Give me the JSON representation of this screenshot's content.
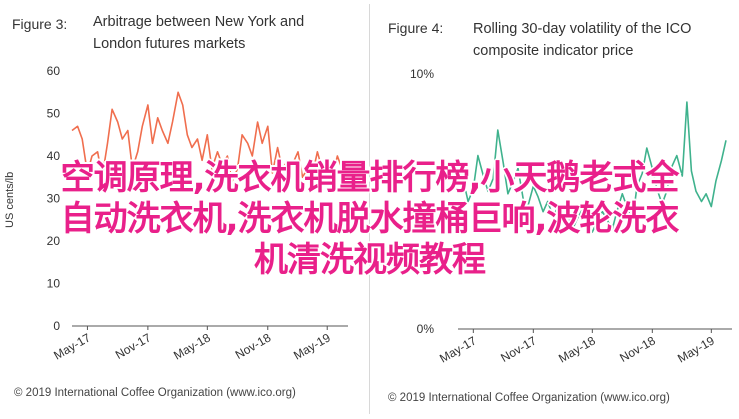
{
  "left_panel": {
    "fig_num": "Figure 3:",
    "title_line1": "Arbitrage between New York and",
    "title_line2": "London futures markets",
    "credit": "© 2019 International Coffee Organization (www.ico.org)"
  },
  "right_panel": {
    "fig_num": "Figure 4:",
    "title_line1": "Rolling 30-day volatility of the ICO",
    "title_line2": "composite indicator price",
    "credit": "© 2019 International Coffee Organization (www.ico.org)"
  },
  "overlay_text": {
    "line1": "空调原理,洗衣机销量排行榜,小天鹅老式全",
    "line2": "自动洗衣机,洗衣机脱水撞桶巨响,波轮洗衣",
    "line3": "机清洗视频教程"
  },
  "colors": {
    "series_left": "#f06e4e",
    "series_right": "#3fb28d",
    "overlay": "#e9208a"
  },
  "chart_data": [
    {
      "type": "line",
      "ylabel": "US cents/lb",
      "ylim": [
        0,
        60
      ],
      "yticks": [
        "0",
        "10",
        "20",
        "30",
        "40",
        "50",
        "60"
      ],
      "xticks": [
        "May-17",
        "Nov-17",
        "May-18",
        "Nov-18",
        "May-19"
      ],
      "grid": false,
      "series": [
        {
          "x": [
            "2017-03-15",
            "2017-04-01",
            "2017-04-15",
            "2017-05-01",
            "2017-05-15",
            "2017-06-01",
            "2017-06-15",
            "2017-07-01",
            "2017-07-15",
            "2017-08-01",
            "2017-08-15",
            "2017-09-01",
            "2017-09-15",
            "2017-10-01",
            "2017-10-15",
            "2017-11-01",
            "2017-11-15",
            "2017-12-01",
            "2017-12-15",
            "2018-01-01",
            "2018-01-15",
            "2018-02-01",
            "2018-02-15",
            "2018-03-01",
            "2018-03-15",
            "2018-04-01",
            "2018-04-15",
            "2018-05-01",
            "2018-05-15",
            "2018-06-01",
            "2018-06-15",
            "2018-07-01",
            "2018-07-15",
            "2018-08-01",
            "2018-08-15",
            "2018-09-01",
            "2018-09-15",
            "2018-10-01",
            "2018-10-15",
            "2018-11-01",
            "2018-11-15",
            "2018-12-01",
            "2018-12-15",
            "2019-01-01",
            "2019-01-15",
            "2019-02-01",
            "2019-02-15",
            "2019-03-01",
            "2019-03-15",
            "2019-04-01",
            "2019-04-15",
            "2019-05-01",
            "2019-05-15",
            "2019-06-01",
            "2019-06-15"
          ],
          "values": [
            46,
            47,
            44,
            36,
            40,
            41,
            35,
            43,
            51,
            48,
            44,
            46,
            37,
            41,
            47,
            52,
            43,
            49,
            46,
            43,
            48,
            55,
            52,
            45,
            42,
            44,
            39,
            45,
            37,
            41,
            38,
            40,
            34,
            37,
            45,
            43,
            40,
            48,
            43,
            47,
            36,
            42,
            37,
            39,
            38,
            41,
            35,
            37,
            35,
            41,
            37,
            35,
            35,
            40,
            37
          ]
        }
      ]
    },
    {
      "type": "line",
      "ylim": [
        0,
        10
      ],
      "yticks": [
        "0%",
        "10%"
      ],
      "xticks": [
        "May-17",
        "Nov-17",
        "May-18",
        "Nov-18",
        "May-19"
      ],
      "grid": false,
      "series": [
        {
          "x": [
            "2017-03-15",
            "2017-04-01",
            "2017-04-15",
            "2017-05-01",
            "2017-05-15",
            "2017-06-01",
            "2017-06-15",
            "2017-07-01",
            "2017-07-15",
            "2017-08-01",
            "2017-08-15",
            "2017-09-01",
            "2017-09-15",
            "2017-10-01",
            "2017-10-15",
            "2017-11-01",
            "2017-11-15",
            "2017-12-01",
            "2017-12-15",
            "2018-01-01",
            "2018-01-15",
            "2018-02-01",
            "2018-02-15",
            "2018-03-01",
            "2018-03-15",
            "2018-04-01",
            "2018-04-15",
            "2018-05-01",
            "2018-05-15",
            "2018-06-01",
            "2018-06-15",
            "2018-07-01",
            "2018-07-15",
            "2018-08-01",
            "2018-08-15",
            "2018-09-01",
            "2018-09-15",
            "2018-10-01",
            "2018-10-15",
            "2018-11-01",
            "2018-11-15",
            "2018-12-01",
            "2018-12-15",
            "2019-01-01",
            "2019-01-15",
            "2019-02-01",
            "2019-02-15",
            "2019-03-01",
            "2019-03-15",
            "2019-04-01",
            "2019-04-15",
            "2019-05-01",
            "2019-05-15",
            "2019-06-01",
            "2019-06-15"
          ],
          "values": [
            6.2,
            5.8,
            5.0,
            5.5,
            6.8,
            6.0,
            5.4,
            5.9,
            7.8,
            6.5,
            5.3,
            5.8,
            6.3,
            5.1,
            4.8,
            5.6,
            5.2,
            4.6,
            5.0,
            4.4,
            4.8,
            4.2,
            4.5,
            3.9,
            4.3,
            4.7,
            4.1,
            3.8,
            4.2,
            4.6,
            4.3,
            3.9,
            4.6,
            5.3,
            4.8,
            4.2,
            5.6,
            6.1,
            7.1,
            6.3,
            5.5,
            4.9,
            5.4,
            6.4,
            6.8,
            6.0,
            8.9,
            6.2,
            5.4,
            5.0,
            5.3,
            4.8,
            5.8,
            6.6,
            7.4
          ]
        }
      ]
    }
  ]
}
